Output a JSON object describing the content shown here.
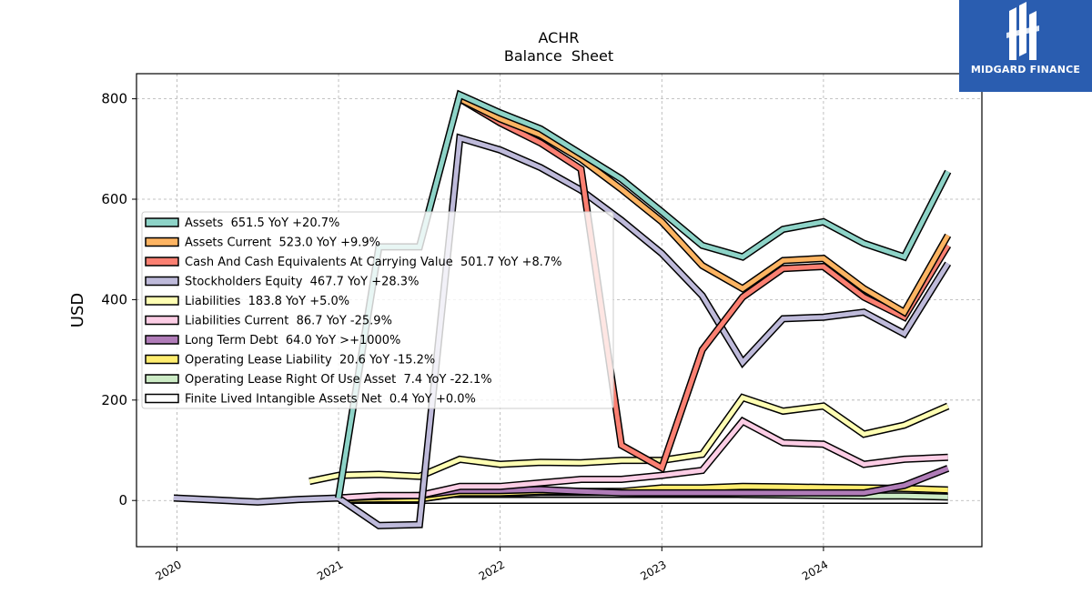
{
  "logo": {
    "text": "MIDGARD FINANCE",
    "bg": "#2a5db0"
  },
  "chart_data": {
    "type": "line",
    "title": "ACHR",
    "subtitle": "Balance  Sheet",
    "xlabel": "",
    "ylabel": "USD",
    "xlim": [
      2019.75,
      2024.98
    ],
    "ylim": [
      -92,
      850
    ],
    "xticks": [
      2020,
      2021,
      2022,
      2023,
      2024
    ],
    "xtick_labels": [
      "2020",
      "2021",
      "2022",
      "2023",
      "2024"
    ],
    "yticks": [
      0,
      200,
      400,
      600,
      800
    ],
    "ytick_labels": [
      "0",
      "200",
      "400",
      "600",
      "800"
    ],
    "grid": true,
    "legend_position": "center-left",
    "series": [
      {
        "name": "Assets",
        "legend": "Assets  651.5 YoY +20.7%",
        "color": "#8dd3c7",
        "points": [
          [
            2021.0,
            5
          ],
          [
            2021.25,
            505
          ],
          [
            2021.5,
            505
          ],
          [
            2021.75,
            808
          ],
          [
            2022.0,
            772
          ],
          [
            2022.25,
            740
          ],
          [
            2022.5,
            690
          ],
          [
            2022.75,
            640
          ],
          [
            2023.0,
            575
          ],
          [
            2023.25,
            508
          ],
          [
            2023.5,
            485
          ],
          [
            2023.75,
            540
          ],
          [
            2024.0,
            555
          ],
          [
            2024.25,
            512
          ],
          [
            2024.5,
            485
          ],
          [
            2024.77,
            655
          ]
        ]
      },
      {
        "name": "Assets Current",
        "legend": "Assets Current  523.0 YoY +9.9%",
        "color": "#fdb462",
        "points": [
          [
            2021.75,
            800
          ],
          [
            2022.0,
            760
          ],
          [
            2022.25,
            728
          ],
          [
            2022.5,
            680
          ],
          [
            2022.75,
            620
          ],
          [
            2023.0,
            555
          ],
          [
            2023.25,
            468
          ],
          [
            2023.5,
            422
          ],
          [
            2023.75,
            478
          ],
          [
            2024.0,
            482
          ],
          [
            2024.25,
            422
          ],
          [
            2024.5,
            375
          ],
          [
            2024.77,
            528
          ]
        ]
      },
      {
        "name": "Cash And Cash Equivalents At Carrying Value",
        "legend": "Cash And Cash Equivalents At Carrying Value  501.7 YoY +8.7%",
        "color": "#fb8072",
        "points": [
          [
            2021.75,
            800
          ],
          [
            2022.0,
            752
          ],
          [
            2022.25,
            712
          ],
          [
            2022.5,
            660
          ],
          [
            2022.75,
            110
          ],
          [
            2023.0,
            65
          ],
          [
            2023.25,
            300
          ],
          [
            2023.5,
            405
          ],
          [
            2023.75,
            462
          ],
          [
            2024.0,
            466
          ],
          [
            2024.25,
            405
          ],
          [
            2024.5,
            365
          ],
          [
            2024.77,
            508
          ]
        ]
      },
      {
        "name": "Stockholders Equity",
        "legend": "Stockholders Equity  467.7 YoY +28.3%",
        "color": "#bebada",
        "points": [
          [
            2019.98,
            5
          ],
          [
            2020.5,
            -3
          ],
          [
            2020.75,
            2
          ],
          [
            2021.0,
            5
          ],
          [
            2021.25,
            -50
          ],
          [
            2021.5,
            -48
          ],
          [
            2021.75,
            722
          ],
          [
            2022.0,
            698
          ],
          [
            2022.25,
            663
          ],
          [
            2022.5,
            618
          ],
          [
            2022.75,
            558
          ],
          [
            2023.0,
            492
          ],
          [
            2023.25,
            408
          ],
          [
            2023.5,
            275
          ],
          [
            2023.75,
            362
          ],
          [
            2024.0,
            365
          ],
          [
            2024.25,
            375
          ],
          [
            2024.5,
            332
          ],
          [
            2024.77,
            472
          ]
        ]
      },
      {
        "name": "Liabilities",
        "legend": "Liabilities  183.8 YoY +5.0%",
        "color": "#ffffb3",
        "points": [
          [
            2020.82,
            38
          ],
          [
            2021.0,
            50
          ],
          [
            2021.25,
            52
          ],
          [
            2021.5,
            48
          ],
          [
            2021.75,
            82
          ],
          [
            2022.0,
            72
          ],
          [
            2022.25,
            76
          ],
          [
            2022.5,
            75
          ],
          [
            2022.75,
            80
          ],
          [
            2023.0,
            80
          ],
          [
            2023.25,
            92
          ],
          [
            2023.5,
            205
          ],
          [
            2023.75,
            178
          ],
          [
            2024.0,
            188
          ],
          [
            2024.25,
            132
          ],
          [
            2024.5,
            150
          ],
          [
            2024.77,
            188
          ]
        ]
      },
      {
        "name": "Liabilities Current",
        "legend": "Liabilities Current  86.7 YoY -25.9%",
        "color": "#fccde5",
        "points": [
          [
            2021.0,
            5
          ],
          [
            2021.25,
            10
          ],
          [
            2021.5,
            10
          ],
          [
            2021.75,
            28
          ],
          [
            2022.0,
            28
          ],
          [
            2022.25,
            35
          ],
          [
            2022.5,
            42
          ],
          [
            2022.75,
            42
          ],
          [
            2023.0,
            50
          ],
          [
            2023.25,
            60
          ],
          [
            2023.5,
            158
          ],
          [
            2023.75,
            115
          ],
          [
            2024.0,
            112
          ],
          [
            2024.25,
            72
          ],
          [
            2024.5,
            82
          ],
          [
            2024.77,
            86
          ]
        ]
      },
      {
        "name": "Long Term Debt",
        "legend": "Long Term Debt  64.0 YoY >+1000%",
        "color": "#b07cb8",
        "points": [
          [
            2021.0,
            5
          ],
          [
            2021.25,
            8
          ],
          [
            2021.5,
            10
          ],
          [
            2021.75,
            20
          ],
          [
            2022.0,
            20
          ],
          [
            2022.25,
            22
          ],
          [
            2022.5,
            18
          ],
          [
            2022.75,
            15
          ],
          [
            2023.0,
            15
          ],
          [
            2023.25,
            15
          ],
          [
            2023.5,
            15
          ],
          [
            2023.75,
            15
          ],
          [
            2024.0,
            15
          ],
          [
            2024.25,
            15
          ],
          [
            2024.5,
            30
          ],
          [
            2024.77,
            64
          ]
        ]
      },
      {
        "name": "Operating Lease Liability",
        "legend": "Operating Lease Liability  20.6 YoY -15.2%",
        "color": "#ffed6f",
        "points": [
          [
            2021.0,
            2
          ],
          [
            2021.25,
            3
          ],
          [
            2021.5,
            3
          ],
          [
            2021.75,
            15
          ],
          [
            2022.0,
            15
          ],
          [
            2022.25,
            18
          ],
          [
            2022.5,
            18
          ],
          [
            2022.75,
            18
          ],
          [
            2023.0,
            25
          ],
          [
            2023.25,
            25
          ],
          [
            2023.5,
            28
          ],
          [
            2023.75,
            27
          ],
          [
            2024.0,
            26
          ],
          [
            2024.25,
            25
          ],
          [
            2024.5,
            24
          ],
          [
            2024.77,
            21
          ]
        ]
      },
      {
        "name": "Operating Lease Right Of Use Asset",
        "legend": "Operating Lease Right Of Use Asset  7.4 YoY -22.1%",
        "color": "#ccebc5",
        "points": [
          [
            2021.0,
            2
          ],
          [
            2021.25,
            3
          ],
          [
            2021.5,
            3
          ],
          [
            2021.75,
            14
          ],
          [
            2022.0,
            14
          ],
          [
            2022.25,
            16
          ],
          [
            2022.5,
            16
          ],
          [
            2022.75,
            16
          ],
          [
            2023.0,
            14
          ],
          [
            2023.25,
            14
          ],
          [
            2023.5,
            12
          ],
          [
            2023.75,
            11
          ],
          [
            2024.0,
            10
          ],
          [
            2024.25,
            9
          ],
          [
            2024.5,
            9
          ],
          [
            2024.77,
            7
          ]
        ]
      },
      {
        "name": "Finite Lived Intangible Assets Net",
        "legend": "Finite Lived Intangible Assets Net  0.4 YoY +0.0%",
        "color": "#ffffff",
        "points": [
          [
            2021.0,
            0.4
          ],
          [
            2022.0,
            0.4
          ],
          [
            2023.0,
            0.4
          ],
          [
            2024.0,
            0.4
          ],
          [
            2024.77,
            0.4
          ]
        ]
      }
    ]
  }
}
